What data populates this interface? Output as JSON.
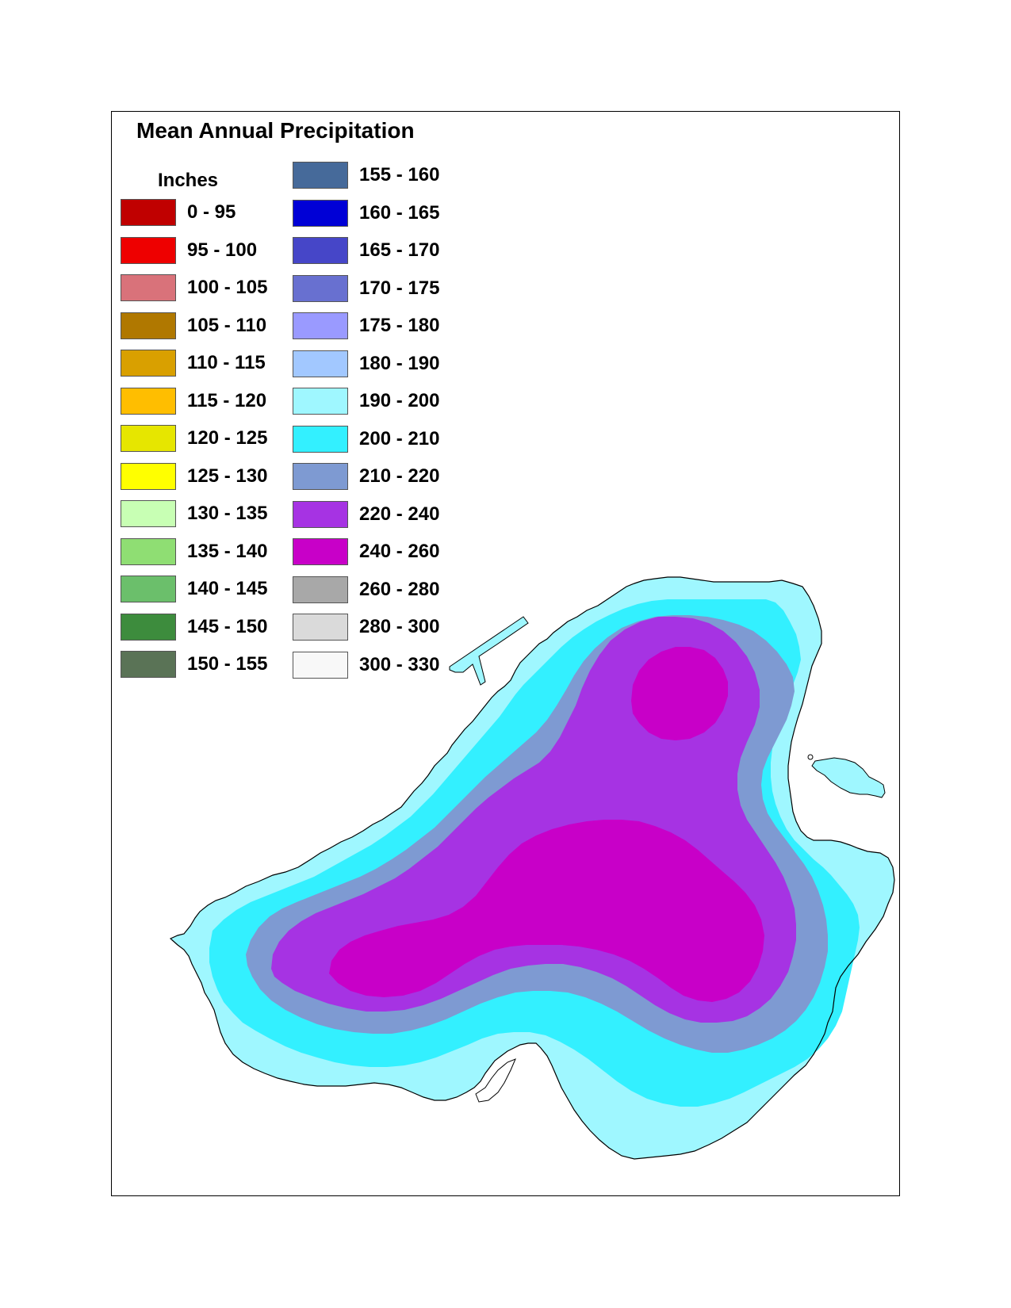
{
  "title": "Mean Annual Precipitation",
  "units": "Inches",
  "legend": {
    "column1": [
      {
        "label": "0 - 95",
        "color": "#c00000"
      },
      {
        "label": "95 - 100",
        "color": "#ee0000"
      },
      {
        "label": "100 - 105",
        "color": "#d9727a"
      },
      {
        "label": "105 - 110",
        "color": "#b07800"
      },
      {
        "label": "110 - 115",
        "color": "#d9a000"
      },
      {
        "label": "115 - 120",
        "color": "#ffbe00"
      },
      {
        "label": "120 - 125",
        "color": "#e6e600"
      },
      {
        "label": "125 - 130",
        "color": "#ffff00"
      },
      {
        "label": "130 - 135",
        "color": "#c8ffb4"
      },
      {
        "label": "135 - 140",
        "color": "#8fde73"
      },
      {
        "label": "140 - 145",
        "color": "#6bbf6b"
      },
      {
        "label": "145 - 150",
        "color": "#3d8c3d"
      },
      {
        "label": "150 - 155",
        "color": "#5a7356"
      }
    ],
    "column2": [
      {
        "label": "155 - 160",
        "color": "#466a9a"
      },
      {
        "label": "160 - 165",
        "color": "#0000d6"
      },
      {
        "label": "165 - 170",
        "color": "#4646c8"
      },
      {
        "label": "170 - 175",
        "color": "#6870d0"
      },
      {
        "label": "175 - 180",
        "color": "#9a9aff"
      },
      {
        "label": "180 - 190",
        "color": "#a2c8ff"
      },
      {
        "label": "190 - 200",
        "color": "#9ff7ff"
      },
      {
        "label": "200 - 210",
        "color": "#33f0ff"
      },
      {
        "label": "210 - 220",
        "color": "#7e9ad2"
      },
      {
        "label": "220 - 240",
        "color": "#a633e3"
      },
      {
        "label": "240 - 260",
        "color": "#c800c8"
      },
      {
        "label": "260 - 280",
        "color": "#a8a8a8"
      },
      {
        "label": "280 - 300",
        "color": "#dadada"
      },
      {
        "label": "300 - 330",
        "color": "#f8f8f8"
      }
    ]
  },
  "map_zones": [
    {
      "range": "190 - 200",
      "color": "#9ff7ff"
    },
    {
      "range": "200 - 210",
      "color": "#33f0ff"
    },
    {
      "range": "210 - 220",
      "color": "#7e9ad2"
    },
    {
      "range": "220 - 240",
      "color": "#a633e3"
    },
    {
      "range": "240 - 260",
      "color": "#c800c8"
    }
  ]
}
